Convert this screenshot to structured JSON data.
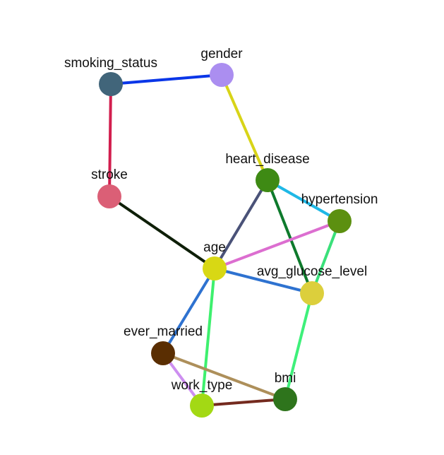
{
  "nodes": [
    {
      "id": "smoking_status",
      "label": "smoking_status",
      "color": "#41657a"
    },
    {
      "id": "gender",
      "label": "gender",
      "color": "#ab8ef0"
    },
    {
      "id": "stroke",
      "label": "stroke",
      "color": "#db5f76"
    },
    {
      "id": "heart_disease",
      "label": "heart_disease",
      "color": "#3e8a14"
    },
    {
      "id": "hypertension",
      "label": "hypertension",
      "color": "#5c9010"
    },
    {
      "id": "age",
      "label": "age",
      "color": "#d8d814"
    },
    {
      "id": "avg_glucose_level",
      "label": "avg_glucose_level",
      "color": "#dccf3c"
    },
    {
      "id": "ever_married",
      "label": "ever_married",
      "color": "#5a2e02"
    },
    {
      "id": "work_type",
      "label": "work_type",
      "color": "#a3d914"
    },
    {
      "id": "bmi",
      "label": "bmi",
      "color": "#2e741c"
    }
  ],
  "edges": [
    {
      "source": "smoking_status",
      "target": "gender",
      "color": "#0a36e8"
    },
    {
      "source": "smoking_status",
      "target": "stroke",
      "color": "#d21e4e"
    },
    {
      "source": "gender",
      "target": "heart_disease",
      "color": "#d8d418"
    },
    {
      "source": "stroke",
      "target": "age",
      "color": "#0e1f08"
    },
    {
      "source": "heart_disease",
      "target": "hypertension",
      "color": "#1fb8e6"
    },
    {
      "source": "heart_disease",
      "target": "age",
      "color": "#4a5278"
    },
    {
      "source": "heart_disease",
      "target": "avg_glucose_level",
      "color": "#0e7a2c"
    },
    {
      "source": "hypertension",
      "target": "age",
      "color": "#dc6ed0"
    },
    {
      "source": "hypertension",
      "target": "avg_glucose_level",
      "color": "#3ae07a"
    },
    {
      "source": "age",
      "target": "avg_glucose_level",
      "color": "#2e72d0"
    },
    {
      "source": "age",
      "target": "ever_married",
      "color": "#2e72d0"
    },
    {
      "source": "age",
      "target": "work_type",
      "color": "#3ef06e"
    },
    {
      "source": "avg_glucose_level",
      "target": "bmi",
      "color": "#3ef07a"
    },
    {
      "source": "ever_married",
      "target": "work_type",
      "color": "#cd8ef0"
    },
    {
      "source": "ever_married",
      "target": "bmi",
      "color": "#ad8f5a"
    },
    {
      "source": "work_type",
      "target": "bmi",
      "color": "#742a1e"
    }
  ]
}
